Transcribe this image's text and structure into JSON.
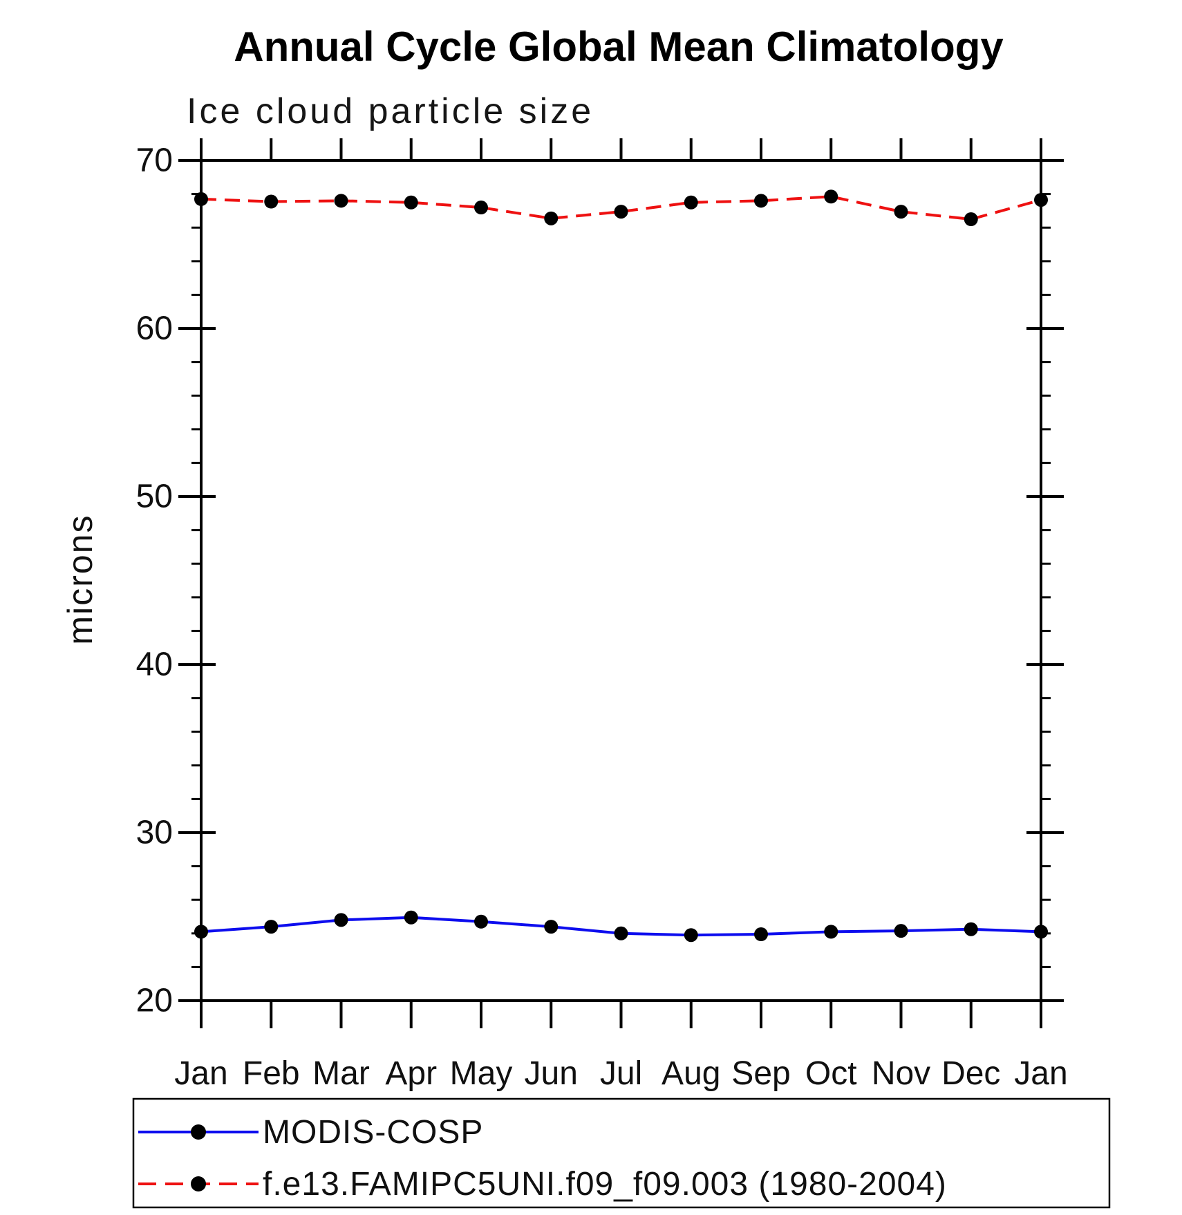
{
  "title": "Annual Cycle Global Mean Climatology",
  "subtitle": "Ice cloud particle size",
  "ylabel": "microns",
  "colors": {
    "axis": "#000000",
    "marker": "#000000",
    "obs_line": "#0d0dee",
    "model_line": "#ee1111",
    "background": "#ffffff"
  },
  "chart_data": {
    "type": "line",
    "title": "Annual Cycle Global Mean Climatology",
    "subtitle": "Ice cloud particle size",
    "xlabel": "",
    "ylabel": "microns",
    "categories": [
      "Jan",
      "Feb",
      "Mar",
      "Apr",
      "May",
      "Jun",
      "Jul",
      "Aug",
      "Sep",
      "Oct",
      "Nov",
      "Dec",
      "Jan"
    ],
    "series": [
      {
        "name": "MODIS-COSP",
        "color": "#0d0dee",
        "line_style": "solid",
        "marker": "black-dot",
        "values": [
          24.1,
          24.4,
          24.8,
          24.95,
          24.7,
          24.4,
          24.0,
          23.9,
          23.95,
          24.1,
          24.15,
          24.25,
          24.1
        ]
      },
      {
        "name": "f.e13.FAMIPC5UNI.f09_f09.003 (1980-2004)",
        "color": "#ee1111",
        "line_style": "dashed",
        "marker": "black-dot",
        "values": [
          67.7,
          67.55,
          67.6,
          67.5,
          67.2,
          66.55,
          66.95,
          67.5,
          67.6,
          67.85,
          66.95,
          66.5,
          67.65
        ]
      }
    ],
    "ylim": [
      20,
      70
    ],
    "yticks": [
      20,
      30,
      40,
      50,
      60,
      70
    ],
    "y_minor_step": 2,
    "grid": false,
    "legend_position": "bottom-box"
  }
}
